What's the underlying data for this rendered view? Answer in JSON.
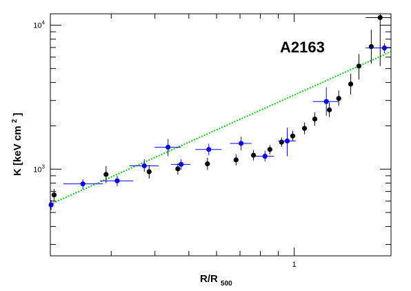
{
  "chart_data": {
    "type": "scatter",
    "title": "",
    "annotation": "A2163",
    "xlabel": {
      "main": "R/R",
      "sub": "500"
    },
    "ylabel": {
      "main": "K [keV cm",
      "sup": "2",
      "end": "]"
    },
    "x_scale": "log",
    "y_scale": "log",
    "xlim": [
      0.201,
      1.89
    ],
    "ylim": [
      250,
      12000
    ],
    "grid": false,
    "legend": "none",
    "x_ticks": [
      {
        "value": 1,
        "label": "1"
      }
    ],
    "y_ticks": [
      {
        "value": 1000,
        "base": "10",
        "exp": "3"
      },
      {
        "value": 10000,
        "base": "10",
        "exp": "4"
      }
    ],
    "series": [
      {
        "color": "#000000",
        "marker": "circle",
        "points": [
          {
            "x": 0.206,
            "y": 662,
            "y_lo": 595,
            "y_hi": 730,
            "x_lo": 0.203,
            "x_hi": 0.209
          },
          {
            "x": 0.29,
            "y": 920,
            "y_lo": 800,
            "y_hi": 1050,
            "x_lo": 0.287,
            "x_hi": 0.293
          },
          {
            "x": 0.385,
            "y": 960,
            "y_lo": 860,
            "y_hi": 1070,
            "x_lo": 0.381,
            "x_hi": 0.389
          },
          {
            "x": 0.465,
            "y": 1005,
            "y_lo": 915,
            "y_hi": 1100,
            "x_lo": 0.46,
            "x_hi": 0.47
          },
          {
            "x": 0.565,
            "y": 1090,
            "y_lo": 990,
            "y_hi": 1200,
            "x_lo": 0.559,
            "x_hi": 0.571
          },
          {
            "x": 0.682,
            "y": 1160,
            "y_lo": 1060,
            "y_hi": 1270,
            "x_lo": 0.675,
            "x_hi": 0.689
          },
          {
            "x": 0.765,
            "y": 1250,
            "y_lo": 1150,
            "y_hi": 1360,
            "x_lo": 0.757,
            "x_hi": 0.773
          },
          {
            "x": 0.852,
            "y": 1370,
            "y_lo": 1270,
            "y_hi": 1470,
            "x_lo": 0.843,
            "x_hi": 0.861
          },
          {
            "x": 0.92,
            "y": 1540,
            "y_lo": 1430,
            "y_hi": 1660,
            "x_lo": 0.911,
            "x_hi": 0.929
          },
          {
            "x": 0.99,
            "y": 1700,
            "y_lo": 1570,
            "y_hi": 1850,
            "x_lo": 0.98,
            "x_hi": 1.0
          },
          {
            "x": 1.07,
            "y": 1920,
            "y_lo": 1750,
            "y_hi": 2110,
            "x_lo": 1.059,
            "x_hi": 1.081
          },
          {
            "x": 1.145,
            "y": 2230,
            "y_lo": 2000,
            "y_hi": 2480,
            "x_lo": 1.133,
            "x_hi": 1.157
          },
          {
            "x": 1.26,
            "y": 2580,
            "y_lo": 2300,
            "y_hi": 2900,
            "x_lo": 1.248,
            "x_hi": 1.272
          },
          {
            "x": 1.34,
            "y": 3100,
            "y_lo": 2750,
            "y_hi": 3520,
            "x_lo": 1.327,
            "x_hi": 1.353
          },
          {
            "x": 1.45,
            "y": 3900,
            "y_lo": 3300,
            "y_hi": 4600,
            "x_lo": 1.436,
            "x_hi": 1.464
          },
          {
            "x": 1.53,
            "y": 5200,
            "y_lo": 4200,
            "y_hi": 6300,
            "x_lo": 1.515,
            "x_hi": 1.545
          },
          {
            "x": 1.66,
            "y": 7100,
            "y_lo": 5400,
            "y_hi": 9300,
            "x_lo": 1.644,
            "x_hi": 1.676
          },
          {
            "x": 1.76,
            "y": 11300,
            "y_lo": 5200,
            "y_hi": 12000,
            "x_lo": 1.6,
            "x_hi": 1.89
          }
        ]
      },
      {
        "color": "#0000ff",
        "marker": "circle",
        "points": [
          {
            "x": 0.202,
            "y": 565,
            "y_lo": 520,
            "y_hi": 610,
            "x_lo": 0.201,
            "x_hi": 0.203
          },
          {
            "x": 0.249,
            "y": 790,
            "y_lo": 730,
            "y_hi": 850,
            "x_lo": 0.219,
            "x_hi": 0.284
          },
          {
            "x": 0.312,
            "y": 830,
            "y_lo": 760,
            "y_hi": 900,
            "x_lo": 0.279,
            "x_hi": 0.347
          },
          {
            "x": 0.373,
            "y": 1055,
            "y_lo": 960,
            "y_hi": 1170,
            "x_lo": 0.338,
            "x_hi": 0.41
          },
          {
            "x": 0.436,
            "y": 1420,
            "y_lo": 1230,
            "y_hi": 1620,
            "x_lo": 0.399,
            "x_hi": 0.474
          },
          {
            "x": 0.475,
            "y": 1080,
            "y_lo": 990,
            "y_hi": 1170,
            "x_lo": 0.445,
            "x_hi": 0.505
          },
          {
            "x": 0.57,
            "y": 1370,
            "y_lo": 1250,
            "y_hi": 1500,
            "x_lo": 0.522,
            "x_hi": 0.62
          },
          {
            "x": 0.705,
            "y": 1510,
            "y_lo": 1350,
            "y_hi": 1680,
            "x_lo": 0.655,
            "x_hi": 0.755
          },
          {
            "x": 0.825,
            "y": 1230,
            "y_lo": 1130,
            "y_hi": 1340,
            "x_lo": 0.775,
            "x_hi": 0.875
          },
          {
            "x": 0.955,
            "y": 1570,
            "y_lo": 1230,
            "y_hi": 1940,
            "x_lo": 0.9,
            "x_hi": 1.01
          },
          {
            "x": 1.235,
            "y": 2950,
            "y_lo": 2350,
            "y_hi": 3700,
            "x_lo": 1.13,
            "x_hi": 1.34
          },
          {
            "x": 1.81,
            "y": 6950,
            "y_lo": 6400,
            "y_hi": 7500,
            "x_lo": 1.6,
            "x_hi": 1.89
          }
        ]
      }
    ],
    "fit_line": {
      "color": "#00cc00",
      "style": "dotted",
      "points": [
        {
          "x": 0.201,
          "y": 570
        },
        {
          "x": 1.89,
          "y": 6550
        }
      ]
    }
  }
}
